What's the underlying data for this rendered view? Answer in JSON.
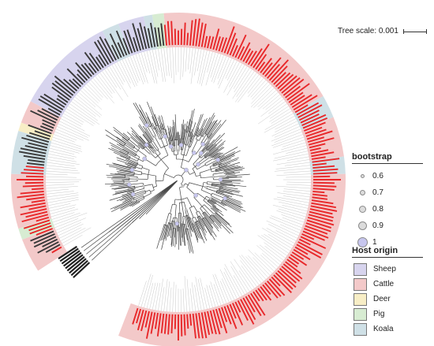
{
  "scale": {
    "label": "Tree scale: 0.001"
  },
  "bootstrap_legend": {
    "title": "bootstrap",
    "items": [
      {
        "label": "0.6",
        "level": 0.6
      },
      {
        "label": "0.7",
        "level": 0.7
      },
      {
        "label": "0.8",
        "level": 0.8
      },
      {
        "label": "0.9",
        "level": 0.9
      },
      {
        "label": "1",
        "level": 1.0,
        "color": "#c7c6ee"
      }
    ]
  },
  "host_legend": {
    "title": "Host origin",
    "items": [
      {
        "label": "Sheep",
        "color": "#d7d4ee"
      },
      {
        "label": "Cattle",
        "color": "#f3c9c9"
      },
      {
        "label": "Deer",
        "color": "#f8eec6"
      },
      {
        "label": "Pig",
        "color": "#d7ecd2"
      },
      {
        "label": "Koala",
        "color": "#cfe0e6"
      }
    ]
  },
  "ring_sectors": [
    {
      "host": "Cattle",
      "from": 147,
      "to": 159
    },
    {
      "host": "Pig",
      "from": 159,
      "to": 163
    },
    {
      "host": "Cattle",
      "from": 163,
      "to": 182
    },
    {
      "host": "Koala",
      "from": 182,
      "to": 197
    },
    {
      "host": "Deer",
      "from": 197,
      "to": 200
    },
    {
      "host": "Cattle",
      "from": 200,
      "to": 208
    },
    {
      "host": "Sheep",
      "from": 208,
      "to": 243
    },
    {
      "host": "Koala",
      "from": 243,
      "to": 249
    },
    {
      "host": "Sheep",
      "from": 249,
      "to": 258
    },
    {
      "host": "Koala",
      "from": 258,
      "to": 261
    },
    {
      "host": "Pig",
      "from": 261,
      "to": 265
    },
    {
      "host": "Cattle",
      "from": 265,
      "to": 330
    },
    {
      "host": "Koala",
      "from": 330,
      "to": 338
    },
    {
      "host": "Cattle",
      "from": 338,
      "to": 352
    },
    {
      "host": "Koala",
      "from": 352,
      "to": 358
    },
    {
      "host": "Cattle",
      "from": 358,
      "to": 471
    }
  ],
  "colors": {
    "label_red": "#e8282a",
    "label_dark": "#3a3a3a",
    "branch": "#444444",
    "guide": "#c8c8c8",
    "highlight": "#c7c6ee"
  }
}
